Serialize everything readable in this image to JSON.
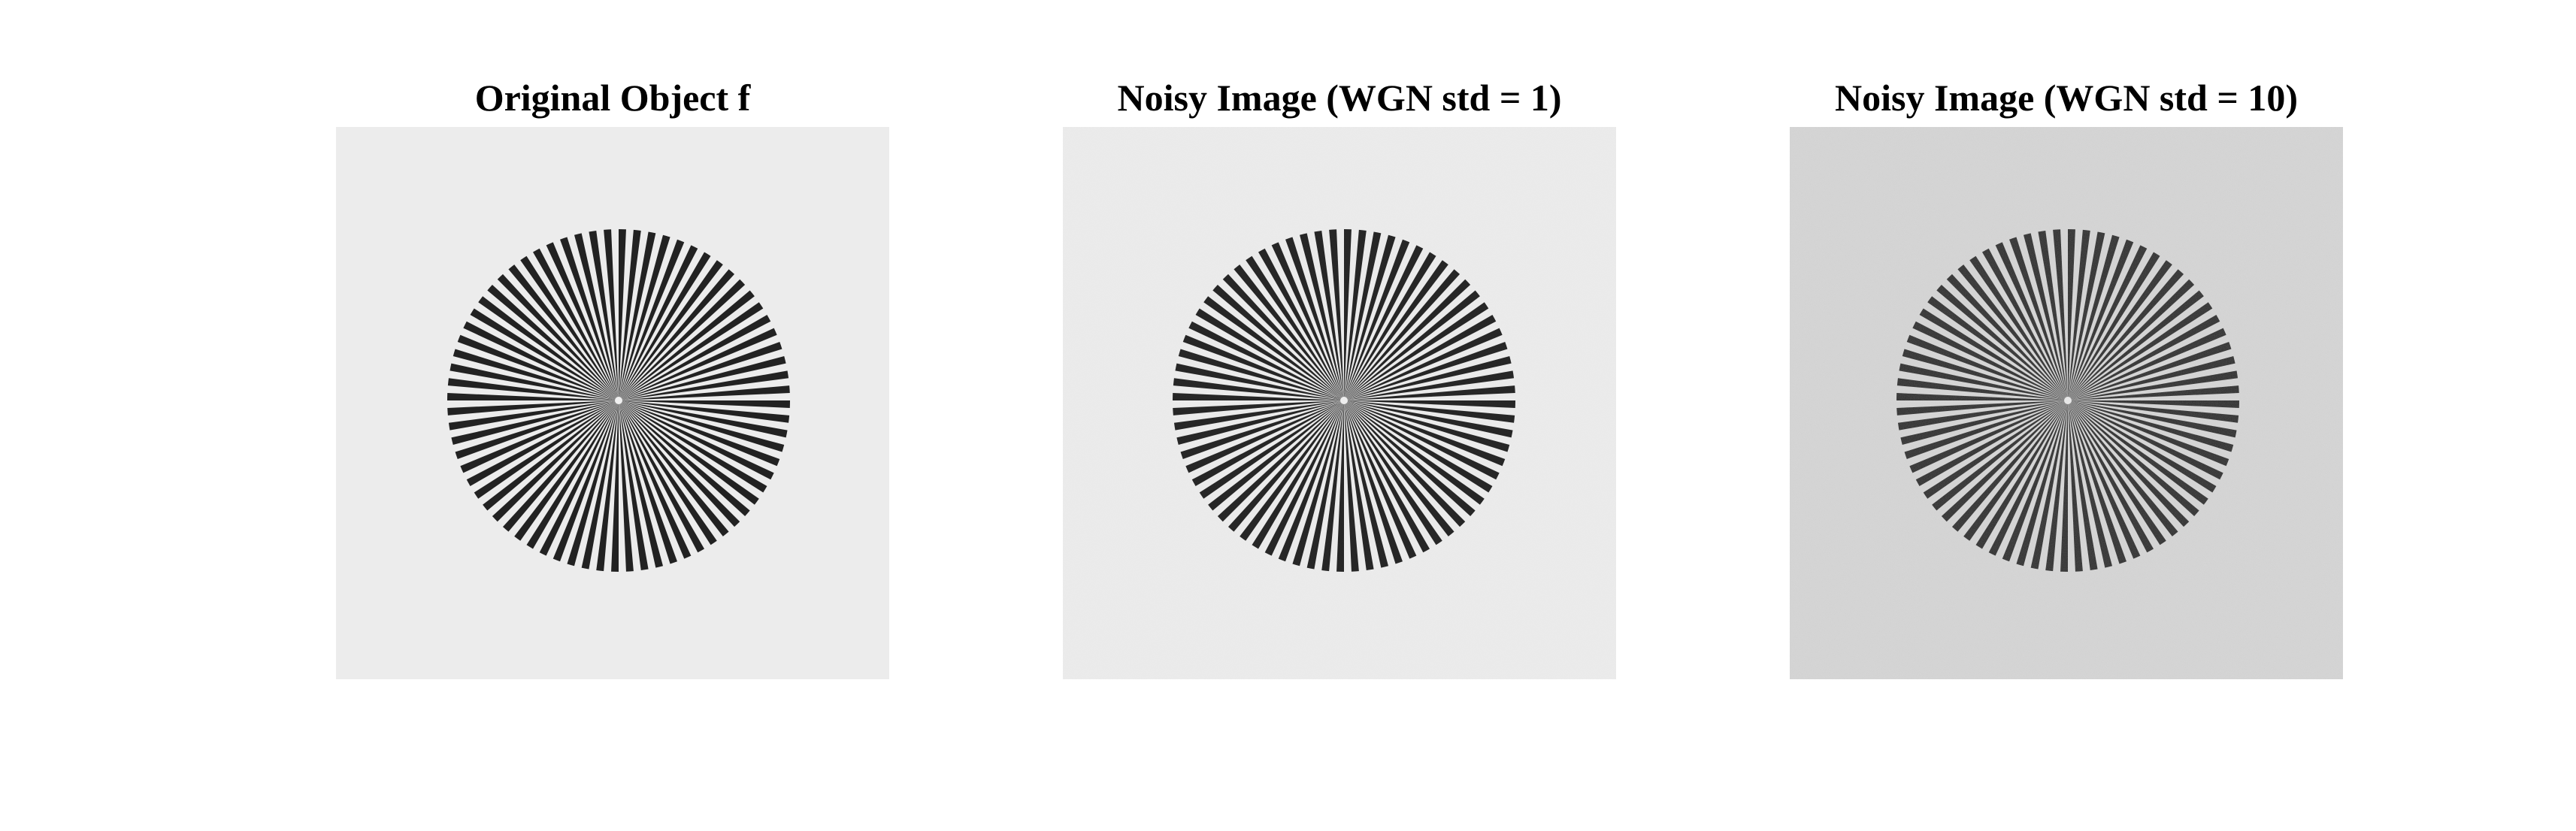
{
  "panels": [
    {
      "title": "Original Object f",
      "background": "#ececec",
      "noise": "none"
    },
    {
      "title": "Noisy Image (WGN std = 1)",
      "background": "#ececec",
      "noise": "low"
    },
    {
      "title": "Noisy Image (WGN std = 10)",
      "background": "#d9d9d9",
      "noise": "high"
    }
  ],
  "star_target": {
    "spokes": 72,
    "spoke_color": "#222222"
  }
}
